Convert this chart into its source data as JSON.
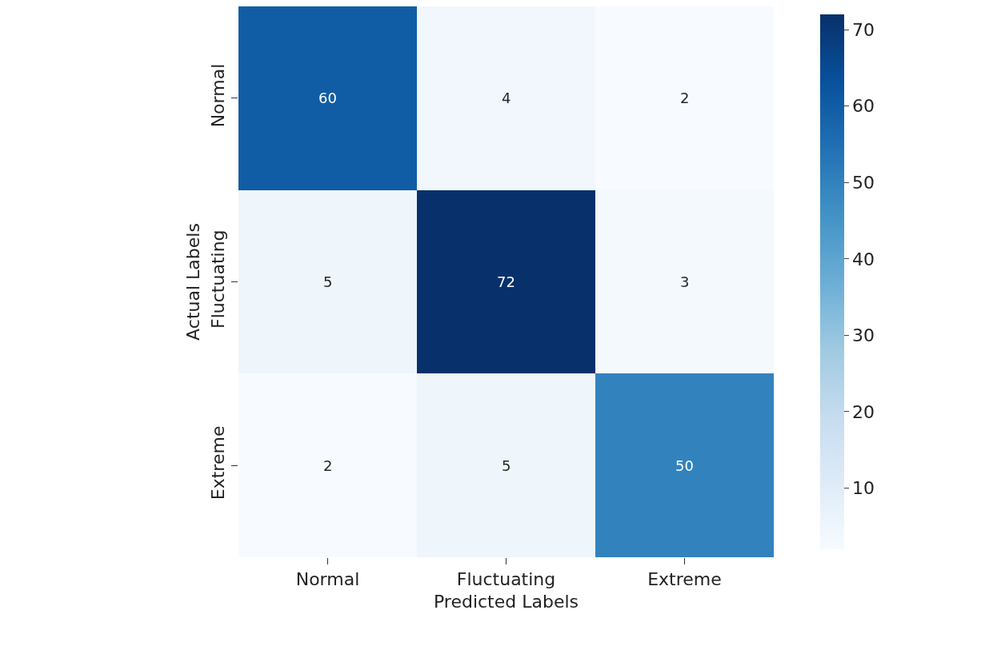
{
  "chart_data": {
    "type": "heatmap",
    "xlabel": "Predicted Labels",
    "ylabel": "Actual Labels",
    "categories": [
      "Normal",
      "Fluctuating",
      "Extreme"
    ],
    "y_categories": [
      "Normal",
      "Fluctuating",
      "Extreme"
    ],
    "cells": [
      [
        60,
        4,
        2
      ],
      [
        5,
        72,
        3
      ],
      [
        2,
        5,
        50
      ]
    ],
    "clim": [
      2,
      72
    ],
    "cticks": [
      10,
      20,
      30,
      40,
      50,
      60,
      70
    ],
    "data_labels": true
  }
}
